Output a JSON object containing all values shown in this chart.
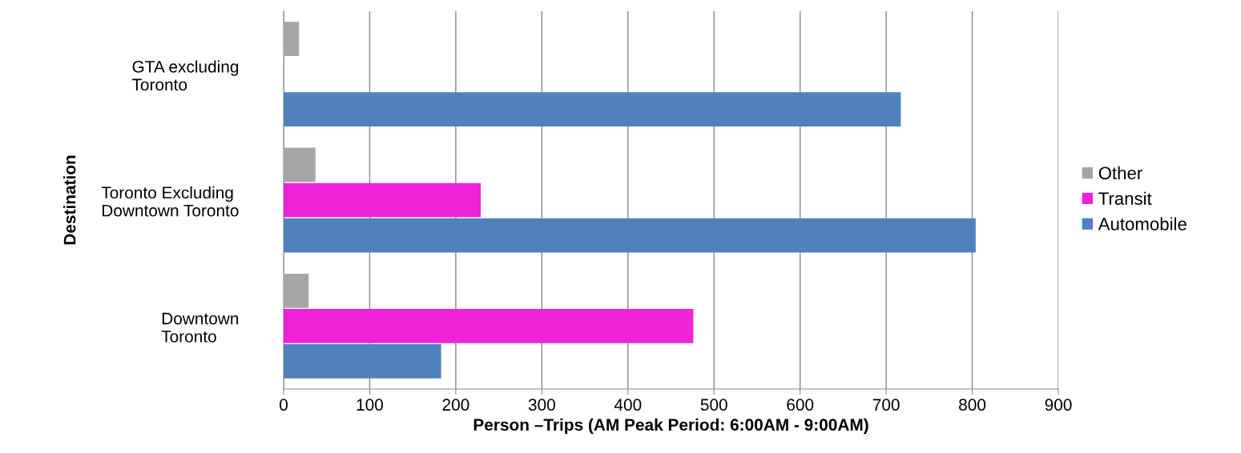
{
  "chart_data": {
    "type": "bar",
    "orientation": "horizontal",
    "categories": [
      "GTA excluding\nToronto",
      "Toronto Excluding\nDowntown Toronto",
      "Downtown\nToronto"
    ],
    "series": [
      {
        "name": "Other",
        "color": "#a5a5a5",
        "values": [
          18,
          37,
          29
        ]
      },
      {
        "name": "Transit",
        "color": "#ee22d6",
        "values": [
          null,
          229,
          476
        ]
      },
      {
        "name": "Automobile",
        "color": "#4f81bd",
        "values": [
          717,
          804,
          183
        ]
      }
    ],
    "xlabel": "Person –Trips (AM Peak Period: 6:00AM - 9:00AM)",
    "ylabel": "Destination",
    "xlim": [
      0,
      900
    ],
    "xticks": [
      0,
      100,
      200,
      300,
      400,
      500,
      600,
      700,
      800,
      900
    ],
    "grid": "x",
    "legend": "right"
  }
}
